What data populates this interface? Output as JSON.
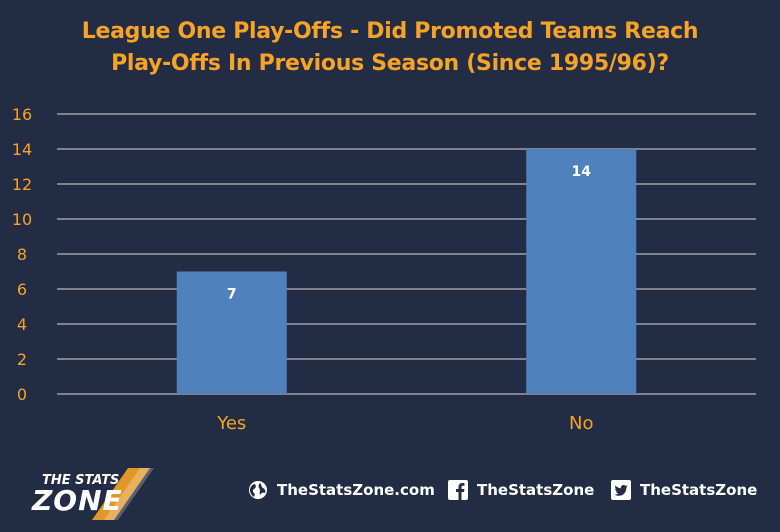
{
  "header": {
    "title_line1": "League One Play-Offs - Did Promoted Teams Reach",
    "title_line2": "Play-Offs In Previous Season (Since 1995/96)?"
  },
  "chart_data": {
    "type": "bar",
    "title": "League One Play-Offs - Did Promoted Teams Reach Play-Offs In Previous Season (Since 1995/96)?",
    "categories": [
      "Yes",
      "No"
    ],
    "values": [
      7,
      14
    ],
    "data_labels": [
      "7",
      "14"
    ],
    "ylim": [
      0,
      16
    ],
    "yticks": [
      "0",
      "2",
      "4",
      "6",
      "8",
      "10",
      "12",
      "14",
      "16"
    ],
    "xlabel": "",
    "ylabel": "",
    "grid": true,
    "legend": "none",
    "colors": {
      "bar": "#4f81bd",
      "grid": "#d9d9d9",
      "tick_label": "#f7a325",
      "category_label": "#f7a325",
      "data_label": "#ffffff"
    }
  },
  "footer": {
    "logo_top": "THE STATS",
    "logo_bottom": "ZONE",
    "links": [
      {
        "icon": "globe-icon",
        "label": "TheStatsZone.com"
      },
      {
        "icon": "facebook-icon",
        "label": "TheStatsZone"
      },
      {
        "icon": "twitter-icon",
        "label": "TheStatsZone"
      }
    ]
  },
  "colors": {
    "background": "#222d45",
    "title": "#f7a325",
    "footer_text": "#ffffff"
  }
}
